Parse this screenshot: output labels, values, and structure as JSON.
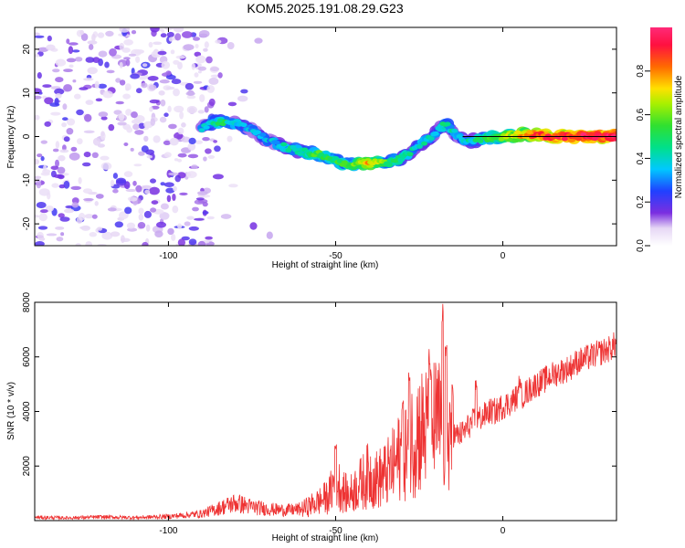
{
  "title": "KOM5.2025.191.08.29.G23",
  "chart_data": [
    {
      "type": "heatmap",
      "xlabel": "Height of straight line (km)",
      "ylabel": "Frequency (Hz)",
      "xlim": [
        -140,
        34
      ],
      "ylim": [
        -25,
        25
      ],
      "xticks": [
        -100,
        -50,
        0
      ],
      "xtick_labels": [
        "-100",
        "-50",
        "0"
      ],
      "yticks": [
        -20,
        -10,
        0,
        10,
        20
      ],
      "ytick_labels": [
        "-20",
        "-10",
        "0",
        "10",
        "20"
      ],
      "colorbar": {
        "label": "Normalized spectral amplitude",
        "range": [
          0,
          1
        ],
        "ticks": [
          0.0,
          0.2,
          0.4,
          0.6,
          0.8
        ],
        "tick_labels": [
          "0.0",
          "0.2",
          "0.4",
          "0.6",
          "0.8"
        ]
      },
      "signal_track": {
        "description_x": [
          -90,
          -85,
          -80,
          -75,
          -70,
          -65,
          -60,
          -55,
          -50,
          -45,
          -40,
          -35,
          -30,
          -25,
          -20,
          -17,
          -15,
          -12,
          -10,
          -5,
          0,
          5,
          10,
          15,
          20,
          25,
          34
        ],
        "frequency": [
          2,
          3.5,
          3,
          1.5,
          -1,
          -2.5,
          -3.5,
          -4,
          -5.5,
          -6.5,
          -6,
          -6,
          -5,
          -2,
          1,
          3,
          1,
          -0.5,
          -1,
          -0.5,
          0,
          0.5,
          0.5,
          0,
          0,
          0,
          0
        ],
        "amplitude": [
          0.3,
          0.45,
          0.35,
          0.3,
          0.3,
          0.35,
          0.4,
          0.5,
          0.45,
          0.5,
          0.7,
          0.5,
          0.4,
          0.35,
          0.3,
          0.4,
          0.35,
          0.3,
          0.35,
          0.45,
          0.55,
          0.7,
          0.8,
          0.85,
          0.85,
          0.9,
          0.9
        ]
      }
    },
    {
      "type": "line",
      "xlabel": "Height of straight line (km)",
      "ylabel": "SNR (10 * v/v)",
      "xlim": [
        -140,
        34
      ],
      "ylim": [
        0,
        8000
      ],
      "xticks": [
        -100,
        -50,
        0
      ],
      "xtick_labels": [
        "-100",
        "-50",
        "0"
      ],
      "yticks": [
        2000,
        4000,
        6000,
        8000
      ],
      "ytick_labels": [
        "2000",
        "4000",
        "6000",
        "8000"
      ],
      "series": [
        {
          "color": "#ee3333",
          "x": [
            -140,
            -130,
            -120,
            -110,
            -100,
            -90,
            -85,
            -80,
            -75,
            -70,
            -65,
            -60,
            -55,
            -52,
            -50,
            -48,
            -46,
            -44,
            -42,
            -40,
            -38,
            -36,
            -34,
            -32,
            -30,
            -28,
            -26,
            -24,
            -22,
            -20,
            -18,
            -16,
            -14,
            -12,
            -10,
            -8,
            -6,
            -4,
            -2,
            0,
            2,
            4,
            6,
            8,
            10,
            12,
            14,
            16,
            18,
            20,
            22,
            24,
            26,
            28,
            30,
            32,
            34
          ],
          "y": [
            120,
            100,
            130,
            110,
            150,
            250,
            450,
            650,
            500,
            420,
            380,
            420,
            700,
            900,
            1500,
            1100,
            900,
            1200,
            1400,
            1700,
            1500,
            1600,
            1800,
            2100,
            2500,
            2700,
            3300,
            3300,
            3300,
            3500,
            3500,
            3300,
            3100,
            3200,
            3500,
            3700,
            3800,
            4000,
            4000,
            4200,
            4300,
            4500,
            4600,
            4800,
            5000,
            5100,
            5300,
            5400,
            5500,
            5600,
            5800,
            5900,
            6000,
            6100,
            6200,
            6300,
            6500
          ],
          "spikes": [
            {
              "x": -50,
              "y": 2900
            },
            {
              "x": -30,
              "y": 4500
            },
            {
              "x": -28,
              "y": 5500
            },
            {
              "x": -22,
              "y": 6300
            },
            {
              "x": -18,
              "y": 8000
            },
            {
              "x": -17,
              "y": 6500
            },
            {
              "x": -15,
              "y": 5000
            },
            {
              "x": -8,
              "y": 5200
            },
            {
              "x": 5,
              "y": 5400
            }
          ]
        }
      ]
    }
  ]
}
